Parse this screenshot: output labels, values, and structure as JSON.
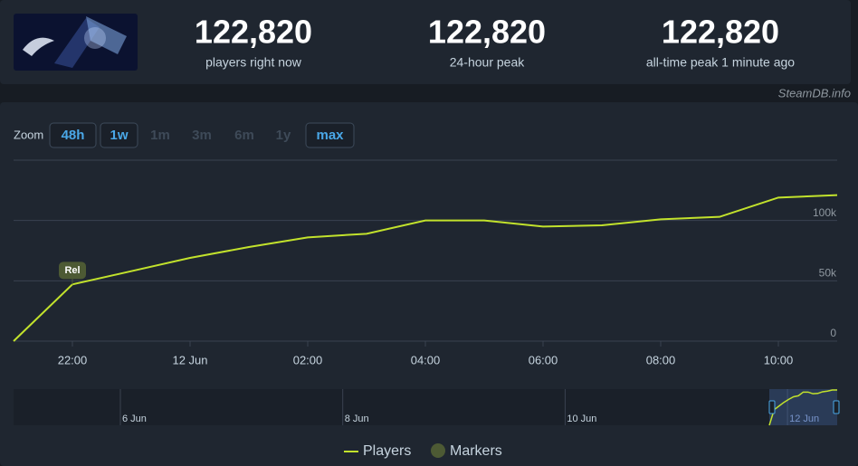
{
  "header": {
    "stats": [
      {
        "value": "122,820",
        "label": "players right now"
      },
      {
        "value": "122,820",
        "label": "24-hour peak"
      },
      {
        "value": "122,820",
        "label": "all-time peak 1 minute ago"
      }
    ],
    "credit": "SteamDB.info"
  },
  "zoom": {
    "label": "Zoom",
    "options": [
      {
        "label": "48h",
        "enabled": true
      },
      {
        "label": "1w",
        "enabled": true
      },
      {
        "label": "1m",
        "enabled": false
      },
      {
        "label": "3m",
        "enabled": false
      },
      {
        "label": "6m",
        "enabled": false
      },
      {
        "label": "1y",
        "enabled": false
      },
      {
        "label": "max",
        "enabled": true
      }
    ]
  },
  "chart_data": {
    "type": "line",
    "categories": [
      null,
      "22:00",
      null,
      "12 Jun",
      null,
      "02:00",
      null,
      "04:00",
      null,
      "06:00",
      null,
      "08:00",
      null,
      "10:00",
      null
    ],
    "series": [
      {
        "name": "Players",
        "color": "#c2e22c",
        "values": [
          0,
          47000,
          58000,
          69000,
          78000,
          86000,
          89000,
          100000,
          100000,
          95000,
          96000,
          101000,
          103000,
          119000,
          121000
        ]
      }
    ],
    "ylim": [
      0,
      150000
    ],
    "yticks": [
      {
        "value": 0,
        "label": "0"
      },
      {
        "value": 50000,
        "label": "50k"
      },
      {
        "value": 100000,
        "label": "100k"
      }
    ],
    "grid": true,
    "markers": {
      "name": "Markers",
      "color": "#4d5a34",
      "points": [
        {
          "label": "Rel",
          "category": "22:00"
        }
      ]
    }
  },
  "navigator": {
    "labels": [
      "6 Jun",
      "8 Jun",
      "10 Jun",
      "12 Jun"
    ]
  }
}
